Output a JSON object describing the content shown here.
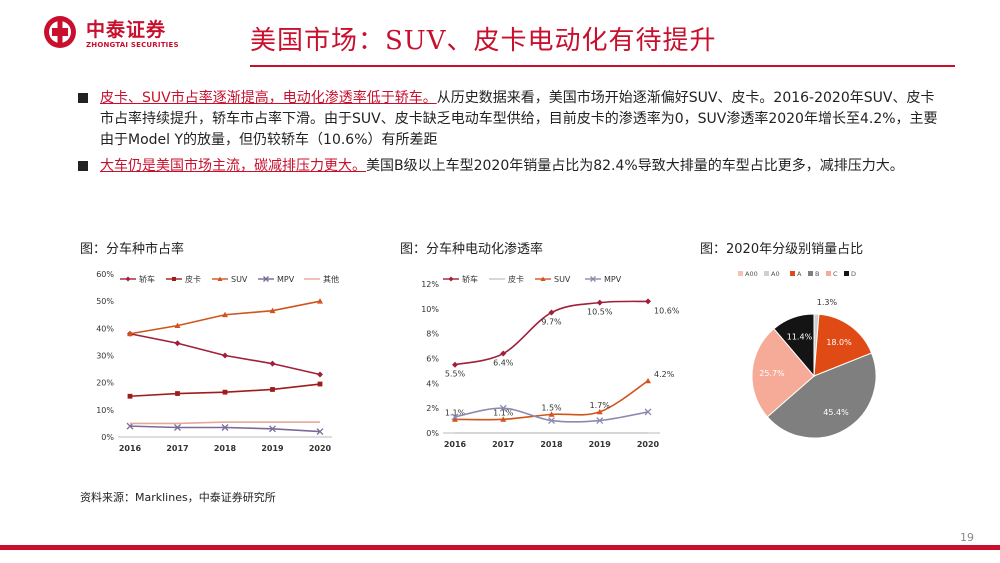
{
  "logo": {
    "name_cn": "中泰证券",
    "name_en": "ZHONGTAI SECURITIES"
  },
  "title": "美国市场：SUV、皮卡电动化有待提升",
  "bullets": [
    {
      "highlight": "皮卡、SUV市占率逐渐提高，电动化渗透率低于轿车。",
      "text": "从历史数据来看，美国市场开始逐渐偏好SUV、皮卡。2016-2020年SUV、皮卡市占率持续提升，轿车市占率下滑。由于SUV、皮卡缺乏电动车型供给，目前皮卡的渗透率为0，SUV渗透率2020年增长至4.2%，主要由于Model Y的放量，但仍较轿车（10.6%）有所差距"
    },
    {
      "highlight": "大车仍是美国市场主流，碳减排压力更大。",
      "text": "美国B级以上车型2020年销量占比为82.4%导致大排量的车型占比更多，减排压力大。"
    }
  ],
  "captions": [
    "图：分车种市占率",
    "图：分车种电动化渗透率",
    "图：2020年分级别销量占比"
  ],
  "source": "资料来源：Marklines，中泰证券研究所",
  "page_number": "19",
  "chart_data": [
    {
      "type": "line",
      "x": [
        "2016",
        "2017",
        "2018",
        "2019",
        "2020"
      ],
      "y_ticks": [
        "0%",
        "10%",
        "20%",
        "30%",
        "40%",
        "50%",
        "60%"
      ],
      "ylim": [
        0,
        60
      ],
      "legend_position": "top",
      "series": [
        {
          "name": "轿车",
          "color": "#a0203a",
          "marker": "diamond",
          "values": [
            38,
            34.5,
            30,
            27,
            23
          ]
        },
        {
          "name": "皮卡",
          "color": "#a01c1c",
          "marker": "square",
          "values": [
            15,
            16,
            16.5,
            17.5,
            19.5
          ]
        },
        {
          "name": "SUV",
          "color": "#d0541c",
          "marker": "triangle",
          "values": [
            38,
            41,
            45,
            46.5,
            50
          ]
        },
        {
          "name": "MPV",
          "color": "#7a6a9a",
          "marker": "x",
          "values": [
            4,
            3.5,
            3.5,
            3,
            2
          ]
        },
        {
          "name": "其他",
          "color": "#e8a898",
          "marker": "none",
          "values": [
            5,
            5,
            5.5,
            5.5,
            5.5
          ]
        }
      ]
    },
    {
      "type": "line",
      "x": [
        "2016",
        "2017",
        "2018",
        "2019",
        "2020"
      ],
      "y_ticks": [
        "0%",
        "2%",
        "4%",
        "6%",
        "8%",
        "10%",
        "12%"
      ],
      "ylim": [
        0,
        12
      ],
      "legend_position": "top",
      "series": [
        {
          "name": "轿车",
          "color": "#a0203a",
          "marker": "diamond",
          "smooth": true,
          "values": [
            5.5,
            6.4,
            9.7,
            10.5,
            10.6
          ],
          "labels": [
            "5.5%",
            "6.4%",
            "9.7%",
            "10.5%",
            "10.6%"
          ]
        },
        {
          "name": "皮卡",
          "color": "#c8c8c8",
          "marker": "none",
          "values": [
            0,
            0,
            0,
            0,
            0
          ]
        },
        {
          "name": "SUV",
          "color": "#d0541c",
          "marker": "triangle",
          "smooth": true,
          "values": [
            1.1,
            1.1,
            1.5,
            1.7,
            4.2
          ],
          "labels": [
            "1.1%",
            "1.1%",
            "1.5%",
            "1.7%",
            "4.2%"
          ]
        },
        {
          "name": "MPV",
          "color": "#8a8ab0",
          "marker": "x",
          "smooth": true,
          "values": [
            1.3,
            2,
            1,
            1,
            1.7
          ]
        }
      ]
    },
    {
      "type": "pie",
      "legend_position": "top",
      "slices": [
        {
          "name": "A00",
          "value": 0.0,
          "color": "#f3c3b0",
          "label": ""
        },
        {
          "name": "A0",
          "value": 1.3,
          "color": "#cfcfcf",
          "label": "1.3%"
        },
        {
          "name": "A",
          "value": 18.0,
          "color": "#e04a14",
          "label": "18.0%"
        },
        {
          "name": "B",
          "value": 45.4,
          "color": "#7f7f7f",
          "label": "45.4%"
        },
        {
          "name": "C",
          "value": 25.7,
          "color": "#f6aa98",
          "label": "25.7%"
        },
        {
          "name": "D",
          "value": 11.4,
          "color": "#141414",
          "label": "11.4%"
        }
      ]
    }
  ]
}
